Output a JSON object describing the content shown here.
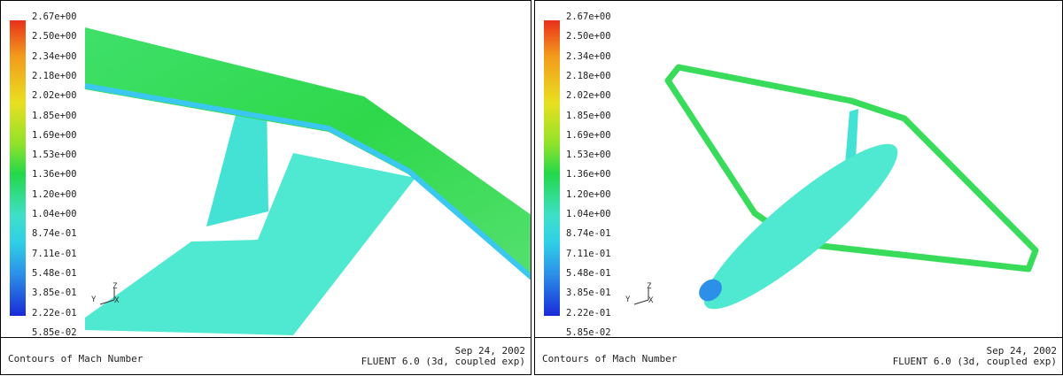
{
  "panels": [
    {
      "colorbar_labels": [
        "2.67e+00",
        "2.50e+00",
        "2.34e+00",
        "2.18e+00",
        "2.02e+00",
        "1.85e+00",
        "1.69e+00",
        "1.53e+00",
        "1.36e+00",
        "1.20e+00",
        "1.04e+00",
        "8.74e-01",
        "7.11e-01",
        "5.48e-01",
        "3.85e-01",
        "2.22e-01",
        "5.85e-02"
      ],
      "axes": {
        "y": "Y",
        "z": "Z",
        "x": "X"
      },
      "caption": "Contours of Mach Number",
      "date": "Sep 24, 2002",
      "version": "FLUENT 6.0 (3d, coupled exp)"
    },
    {
      "colorbar_labels": [
        "2.67e+00",
        "2.50e+00",
        "2.34e+00",
        "2.18e+00",
        "2.02e+00",
        "1.85e+00",
        "1.69e+00",
        "1.53e+00",
        "1.36e+00",
        "1.20e+00",
        "1.04e+00",
        "8.74e-01",
        "7.11e-01",
        "5.48e-01",
        "3.85e-01",
        "2.22e-01",
        "5.85e-02"
      ],
      "axes": {
        "y": "Y",
        "z": "Z",
        "x": "X"
      },
      "caption": "Contours of Mach Number",
      "date": "Sep 24, 2002",
      "version": "FLUENT 6.0 (3d, coupled exp)"
    }
  ]
}
